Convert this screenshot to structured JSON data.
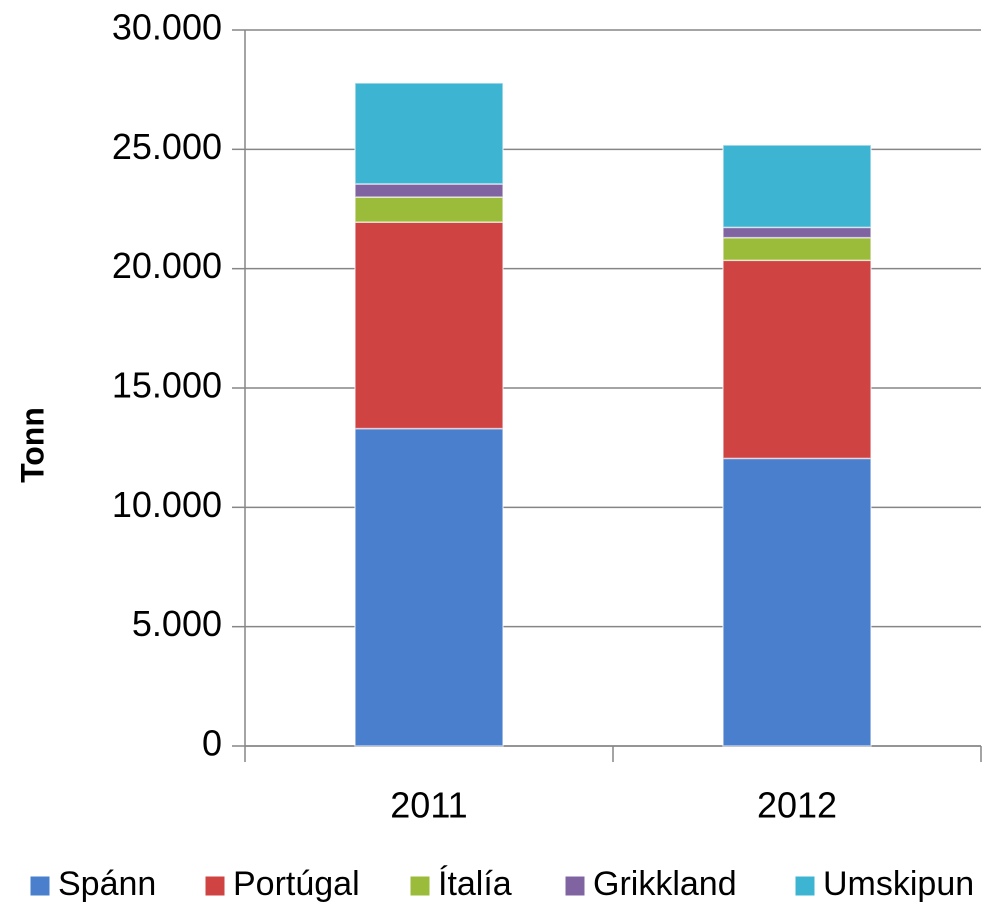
{
  "chart_data": {
    "type": "stacked_bar",
    "y_label": "Tonn",
    "categories": [
      "2011",
      "2012"
    ],
    "series": [
      {
        "name": "Spánn",
        "color": "#4a7fce",
        "values": [
          13300,
          12050
        ]
      },
      {
        "name": "Portúgal",
        "color": "#d04343",
        "values": [
          8650,
          8300
        ]
      },
      {
        "name": "Ítalía",
        "color": "#9bbb3a",
        "values": [
          1050,
          950
        ]
      },
      {
        "name": "Grikkland",
        "color": "#8064a2",
        "values": [
          550,
          430
        ]
      },
      {
        "name": "Umskipun",
        "color": "#3cb4d2",
        "values": [
          4230,
          3450
        ]
      }
    ],
    "ylim": [
      0,
      30000
    ],
    "yticks": [
      0,
      {
        "value": 5000,
        "label": "5.000"
      },
      {
        "value": 10000,
        "label": "10.000"
      },
      {
        "value": 15000,
        "label": "15.000"
      },
      {
        "value": 20000,
        "label": "20.000"
      },
      {
        "value": 25000,
        "label": "25.000"
      },
      {
        "value": 30000,
        "label": "30.000"
      }
    ],
    "grid": true,
    "legend": "bottom"
  }
}
